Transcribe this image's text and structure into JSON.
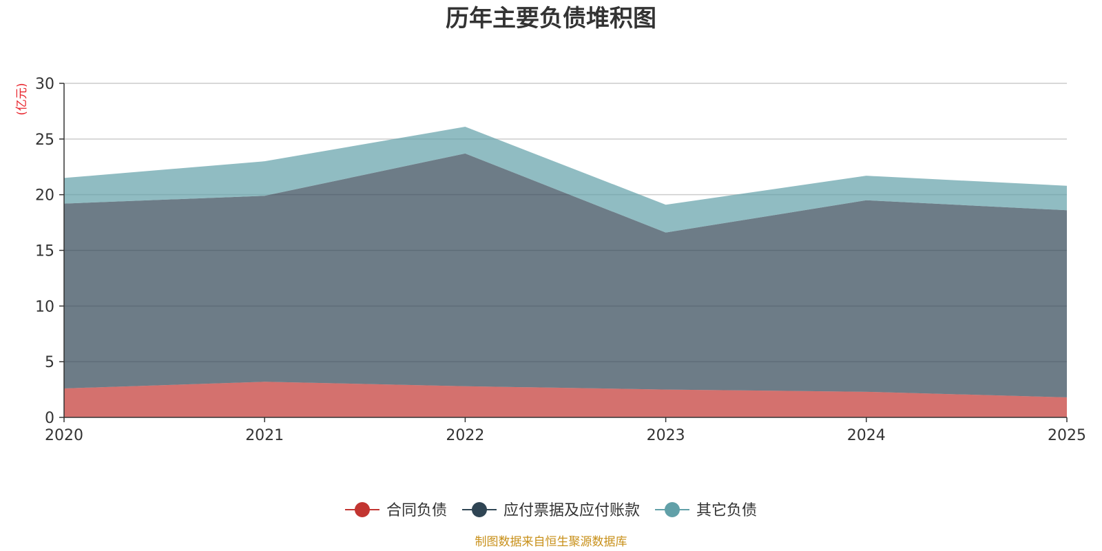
{
  "chart_data": {
    "type": "area",
    "stacked": true,
    "title": "历年主要负债堆积图",
    "y_unit_label": "(亿元)",
    "x": [
      "2020",
      "2021",
      "2022",
      "2023",
      "2024",
      "2025"
    ],
    "series": [
      {
        "name": "合同负债",
        "values": [
          2.6,
          3.2,
          2.8,
          2.5,
          2.3,
          1.8
        ],
        "color": "#c23531",
        "fill_opacity": 0.7
      },
      {
        "name": "应付票据及应付账款",
        "values": [
          16.6,
          16.7,
          20.9,
          14.1,
          17.2,
          16.8
        ],
        "color": "#2f4554",
        "fill_opacity": 0.7
      },
      {
        "name": "其它负债",
        "values": [
          2.3,
          3.1,
          2.4,
          2.5,
          2.2,
          2.2
        ],
        "color": "#61a0a8",
        "fill_opacity": 0.7
      }
    ],
    "ylim": [
      0,
      30
    ],
    "yticks": [
      0,
      5,
      10,
      15,
      20,
      25,
      30
    ],
    "grid": true,
    "legend_position": "bottom-center",
    "source": "制图数据来自恒生聚源数据库",
    "colors": {
      "unit_label": "#e8232b",
      "source": "#c8901a",
      "axis": "#333333",
      "grid": "#cccccc"
    }
  }
}
